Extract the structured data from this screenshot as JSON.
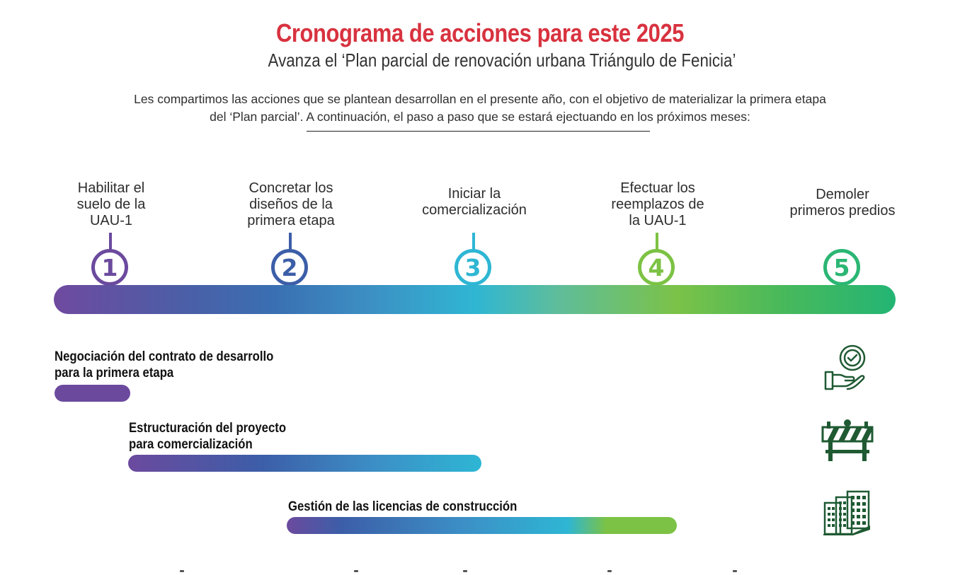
{
  "header": {
    "title": "Cronograma de acciones para este 2025",
    "subtitle": "Avanza el ‘Plan parcial de renovación urbana Triángulo de Fenicia’",
    "intro_line1": "Les compartimos las acciones que se plantean desarrollan en el presente año, con el objetivo de materializar la primera etapa",
    "intro_line2": "del ‘Plan parcial’. A continuación, el paso a paso que se estará ejectuando en los próximos meses:"
  },
  "steps": [
    {
      "number": "1",
      "label_lines": [
        "Habilitar el",
        "suelo de la",
        "UAU-1"
      ],
      "color": "#6b4a9e"
    },
    {
      "number": "2",
      "label_lines": [
        "Concretar los",
        "diseños de la",
        "primera etapa"
      ],
      "color": "#3c5ea8"
    },
    {
      "number": "3",
      "label_lines": [
        "Iniciar la",
        "comercialización"
      ],
      "color": "#2eb6d4"
    },
    {
      "number": "4",
      "label_lines": [
        "Efectuar los",
        "reemplazos de",
        "la UAU-1"
      ],
      "color": "#7cc244"
    },
    {
      "number": "5",
      "label_lines": [
        "Demoler",
        "primeros predios"
      ],
      "color": "#2bb673"
    }
  ],
  "actions": [
    {
      "label_lines": [
        "Negociación del contrato de desarrollo",
        "para la primera etapa"
      ],
      "icon": "hand-check-icon"
    },
    {
      "label_lines": [
        "Estructuración del proyecto",
        "para comercialización"
      ],
      "icon": "construction-barrier-icon"
    },
    {
      "label_lines": [
        "Gestión de las licencias de construcción"
      ],
      "icon": "buildings-icon"
    }
  ],
  "colors": {
    "title": "#d8323f",
    "icon": "#1f5a33",
    "purple": "#6b4a9e",
    "blue": "#3c5ea8",
    "cyan": "#2eb6d4",
    "lime": "#7cc244",
    "green": "#2bb673"
  }
}
